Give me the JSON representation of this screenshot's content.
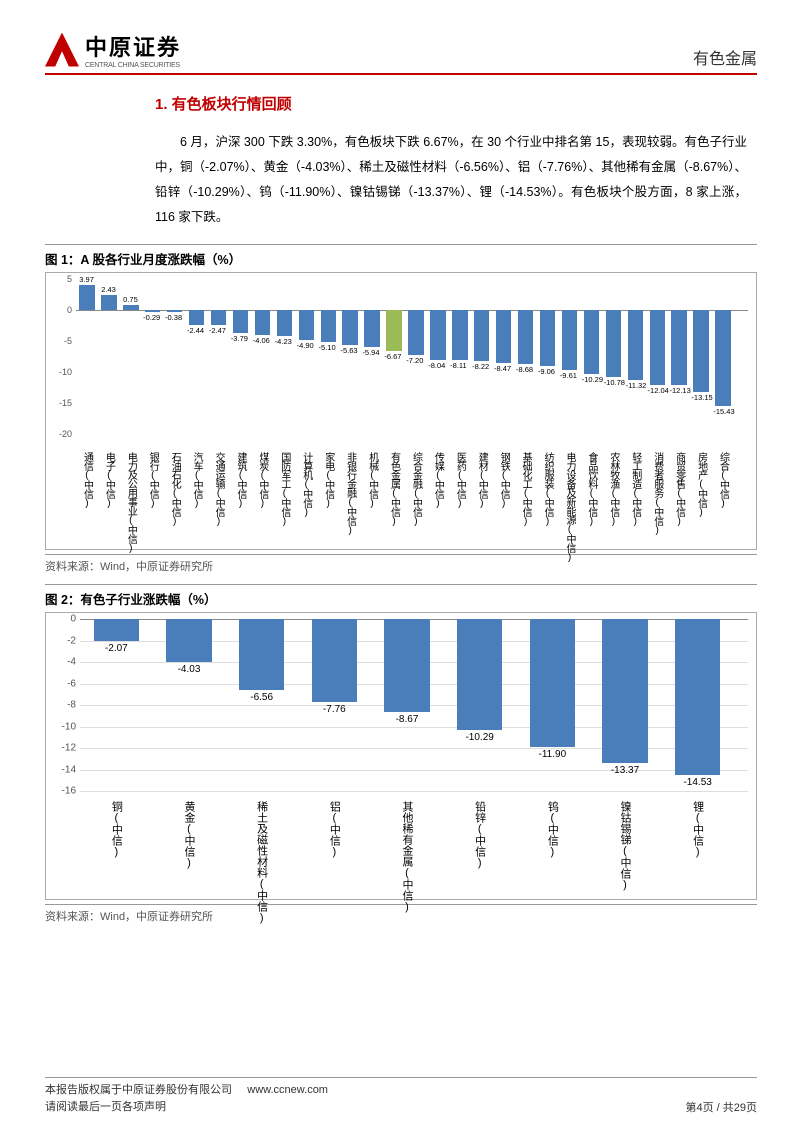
{
  "header": {
    "logo_cn": "中原证券",
    "logo_en": "CENTRAL CHINA SECURITIES",
    "category": "有色金属"
  },
  "section": {
    "title": "1. 有色板块行情回顾",
    "body": "6 月，沪深 300 下跌 3.30%，有色板块下跌 6.67%，在 30 个行业中排名第 15，表现较弱。有色子行业中，铜（-2.07%）、黄金（-4.03%）、稀土及磁性材料（-6.56%）、铝（-7.76%）、其他稀有金属（-8.67%）、铅锌（-10.29%）、钨（-11.90%）、镍钴锡锑（-13.37%）、锂（-14.53%）。有色板块个股方面，8 家上涨，116 家下跌。"
  },
  "fig1": {
    "title": "图 1：A 股各行业月度涨跌幅（%）",
    "source": "资料来源：Wind，中原证券研究所",
    "y_min": -20,
    "y_max": 5,
    "y_step": 5,
    "bar_color": "#4a7ebb",
    "highlight_color": "#9bbb59",
    "label_fontsize": 7.5,
    "categories": [
      "通信(中信)",
      "电子(中信)",
      "电力及公用事业(中信)",
      "银行(中信)",
      "石油石化(中信)",
      "汽车(中信)",
      "交通运输(中信)",
      "建筑(中信)",
      "煤炭(中信)",
      "国防军工(中信)",
      "计算机(中信)",
      "家电(中信)",
      "非银行金融(中信)",
      "机械(中信)",
      "有色金属(中信)",
      "综合金融(中信)",
      "传媒(中信)",
      "医药(中信)",
      "建材(中信)",
      "钢铁(中信)",
      "基础化工(中信)",
      "纺织服装(中信)",
      "电力设备及新能源(中信)",
      "食品饮料(中信)",
      "农林牧渔(中信)",
      "轻工制造(中信)",
      "消费者服务(中信)",
      "商贸零售(中信)",
      "房地产(中信)",
      "综合(中信)"
    ],
    "values": [
      3.97,
      2.43,
      0.75,
      -0.29,
      -0.38,
      -2.44,
      -2.47,
      -3.79,
      -4.06,
      -4.23,
      -4.9,
      -5.1,
      -5.63,
      -5.94,
      -6.67,
      -7.2,
      -8.04,
      -8.11,
      -8.22,
      -8.47,
      -8.68,
      -9.06,
      -9.61,
      -10.29,
      -10.78,
      -11.32,
      -12.04,
      -12.13,
      -13.15,
      -15.43
    ],
    "highlight_index": 14
  },
  "fig2": {
    "title": "图 2：有色子行业涨跌幅（%）",
    "source": "资料来源：Wind，中原证券研究所",
    "y_min": -16,
    "y_max": 0,
    "y_step": 2,
    "bar_color": "#4a7ebb",
    "grid_color": "#dddddd",
    "label_fontsize": 10,
    "categories": [
      "铜(中信)",
      "黄金(中信)",
      "稀土及磁性材料(中信)",
      "铝(中信)",
      "其他稀有金属(中信)",
      "铅锌(中信)",
      "钨(中信)",
      "镍钴锡锑(中信)",
      "锂(中信)"
    ],
    "values": [
      -2.07,
      -4.03,
      -6.56,
      -7.76,
      -8.67,
      -10.29,
      -11.9,
      -13.37,
      -14.53
    ]
  },
  "footer": {
    "line1": "本报告版权属于中原证券股份有限公司",
    "url": "www.ccnew.com",
    "line2": "请阅读最后一页各项声明",
    "page": "第4页  /  共29页"
  }
}
